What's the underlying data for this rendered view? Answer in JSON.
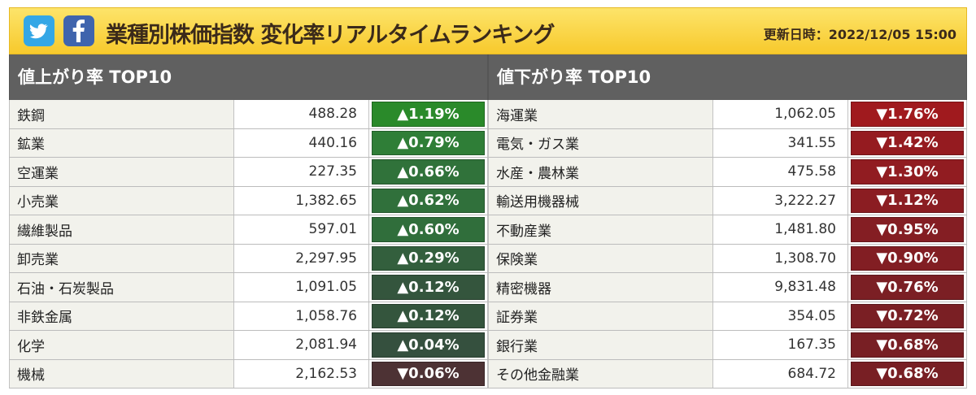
{
  "header": {
    "title": "業種別株価指数 変化率リアルタイムランキング",
    "updated": "更新日時：2022/12/05 15:00",
    "icons": [
      "twitter-icon",
      "facebook-icon"
    ]
  },
  "up": {
    "heading": "値上がり率 TOP10",
    "rows": [
      {
        "name": "鉄鋼",
        "value": "488.28",
        "change": "▲1.19%",
        "color": "#2a8a2a"
      },
      {
        "name": "鉱業",
        "value": "440.16",
        "change": "▲0.79%",
        "color": "#2f7e37"
      },
      {
        "name": "空運業",
        "value": "227.35",
        "change": "▲0.66%",
        "color": "#30723a"
      },
      {
        "name": "小売業",
        "value": "1,382.65",
        "change": "▲0.62%",
        "color": "#30703b"
      },
      {
        "name": "繊維製品",
        "value": "597.01",
        "change": "▲0.60%",
        "color": "#306e3b"
      },
      {
        "name": "卸売業",
        "value": "2,297.95",
        "change": "▲0.29%",
        "color": "#335f3d"
      },
      {
        "name": "石油・石炭製品",
        "value": "1,091.05",
        "change": "▲0.12%",
        "color": "#34553d"
      },
      {
        "name": "非鉄金属",
        "value": "1,058.76",
        "change": "▲0.12%",
        "color": "#34553d"
      },
      {
        "name": "化学",
        "value": "2,081.94",
        "change": "▲0.04%",
        "color": "#35503e"
      },
      {
        "name": "機械",
        "value": "2,162.53",
        "change": "▼0.06%",
        "color": "#4d3234"
      }
    ]
  },
  "down": {
    "heading": "値下がり率 TOP10",
    "rows": [
      {
        "name": "海運業",
        "value": "1,062.05",
        "change": "▼1.76%",
        "color": "#a01a1e"
      },
      {
        "name": "電気・ガス業",
        "value": "341.55",
        "change": "▼1.42%",
        "color": "#951b20"
      },
      {
        "name": "水産・農林業",
        "value": "475.58",
        "change": "▼1.30%",
        "color": "#911c21"
      },
      {
        "name": "輸送用機器械",
        "value": "3,222.27",
        "change": "▼1.12%",
        "color": "#8b1d22"
      },
      {
        "name": "不動産業",
        "value": "1,481.80",
        "change": "▼0.95%",
        "color": "#841e23"
      },
      {
        "name": "保険業",
        "value": "1,308.70",
        "change": "▼0.90%",
        "color": "#821e23"
      },
      {
        "name": "精密機器",
        "value": "9,831.48",
        "change": "▼0.76%",
        "color": "#7b1f24"
      },
      {
        "name": "証券業",
        "value": "354.05",
        "change": "▼0.72%",
        "color": "#7a1f24"
      },
      {
        "name": "銀行業",
        "value": "167.35",
        "change": "▼0.68%",
        "color": "#781f24"
      },
      {
        "name": "その他金融業",
        "value": "684.72",
        "change": "▼0.68%",
        "color": "#781f24"
      }
    ]
  }
}
